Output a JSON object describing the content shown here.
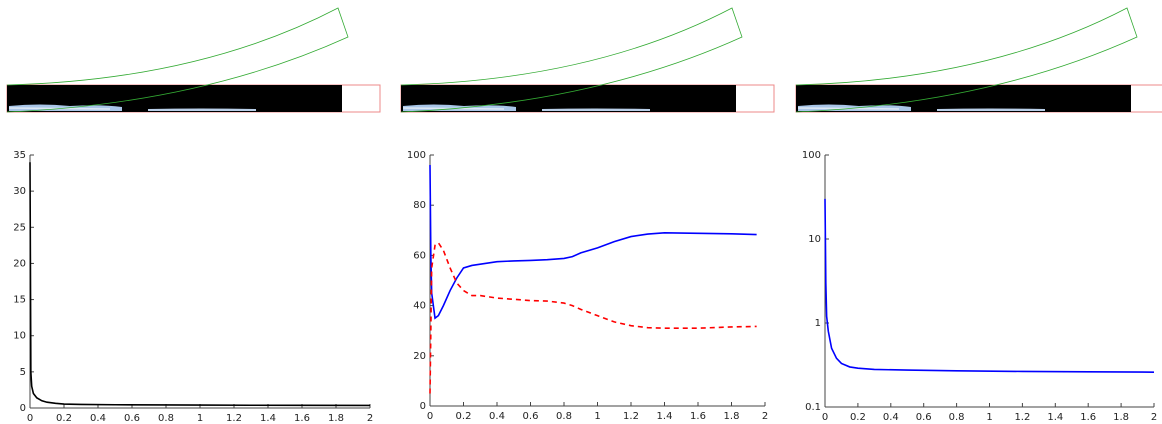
{
  "chart_data": [
    {
      "type": "line",
      "xlim": [
        0,
        2
      ],
      "xticks": [
        0,
        0.2,
        0.4,
        0.6,
        0.8,
        1,
        1.2,
        1.4,
        1.6,
        1.8,
        2
      ],
      "ylim": [
        0,
        35
      ],
      "yticks": [
        0,
        5,
        10,
        15,
        20,
        25,
        30,
        35
      ],
      "x": [
        0,
        0.005,
        0.01,
        0.02,
        0.04,
        0.07,
        0.1,
        0.15,
        0.2,
        0.3,
        0.5,
        0.8,
        1.0,
        1.3,
        1.6,
        2.0
      ],
      "series": [
        {
          "color": "#000000",
          "style": "solid",
          "values": [
            34,
            5,
            3,
            2,
            1.4,
            1.0,
            0.8,
            0.65,
            0.55,
            0.5,
            0.45,
            0.42,
            0.4,
            0.38,
            0.37,
            0.36
          ]
        }
      ]
    },
    {
      "type": "line",
      "xlim": [
        0,
        2
      ],
      "xticks": [
        0,
        0.2,
        0.4,
        0.6,
        0.8,
        1,
        1.2,
        1.4,
        1.6,
        1.8,
        2
      ],
      "ylim": [
        0,
        100
      ],
      "yticks": [
        0,
        20,
        40,
        60,
        80,
        100
      ],
      "x": [
        0,
        0.005,
        0.01,
        0.03,
        0.05,
        0.08,
        0.12,
        0.16,
        0.2,
        0.25,
        0.3,
        0.4,
        0.5,
        0.6,
        0.7,
        0.8,
        0.85,
        0.9,
        1.0,
        1.1,
        1.2,
        1.3,
        1.4,
        1.6,
        1.8,
        1.95
      ],
      "series": [
        {
          "color": "#0000ff",
          "style": "solid",
          "values": [
            96,
            60,
            45,
            35,
            36,
            40,
            46,
            51,
            55,
            56,
            56.5,
            57.5,
            57.8,
            58,
            58.3,
            58.8,
            59.5,
            61,
            63,
            65.5,
            67.5,
            68.5,
            69,
            68.8,
            68.6,
            68.3
          ]
        },
        {
          "color": "#ff0000",
          "style": "dashed",
          "values": [
            5,
            30,
            55,
            64,
            65,
            62,
            55,
            49,
            46,
            44,
            44,
            43,
            42.5,
            42,
            41.8,
            41,
            40,
            38.5,
            36,
            33.5,
            32,
            31.2,
            31,
            31,
            31.5,
            31.7
          ]
        }
      ]
    },
    {
      "type": "line",
      "log_y": true,
      "xlim": [
        0,
        2
      ],
      "xticks": [
        0,
        0.2,
        0.4,
        0.6,
        0.8,
        1,
        1.2,
        1.4,
        1.6,
        1.8,
        2
      ],
      "ylim": [
        0.1,
        100
      ],
      "yticks": [
        0.1,
        1,
        10,
        100
      ],
      "x": [
        0,
        0.005,
        0.01,
        0.02,
        0.04,
        0.07,
        0.1,
        0.15,
        0.2,
        0.3,
        0.5,
        0.8,
        1.2,
        1.6,
        2.0
      ],
      "series": [
        {
          "color": "#0000ff",
          "style": "solid",
          "values": [
            30,
            3,
            1.2,
            0.8,
            0.5,
            0.38,
            0.33,
            0.3,
            0.29,
            0.28,
            0.275,
            0.27,
            0.265,
            0.262,
            0.26
          ]
        }
      ]
    }
  ]
}
